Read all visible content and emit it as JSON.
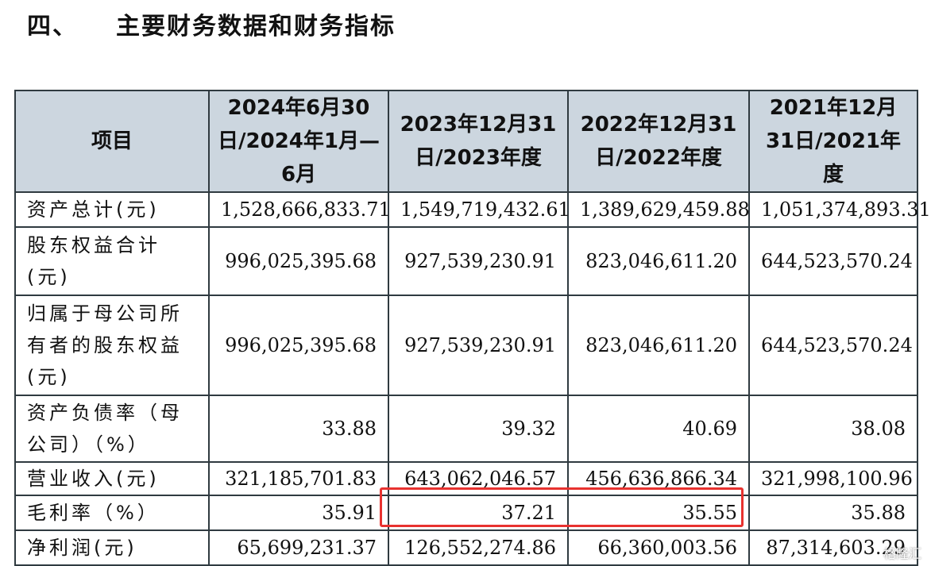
{
  "heading": {
    "number": "四、",
    "title": "主要财务数据和财务指标"
  },
  "table": {
    "headers": [
      "项目",
      "2024年6月30日/2024年1月—6月",
      "2023年12月31日/2023年度",
      "2022年12月31日/2022年度",
      "2021年12月31日/2021年度"
    ],
    "rows": [
      {
        "label": "资产总计(元)",
        "values": [
          "1,528,666,833.71",
          "1,549,719,432.61",
          "1,389,629,459.88",
          "1,051,374,893.31"
        ]
      },
      {
        "label": "股东权益合计(元)",
        "values": [
          "996,025,395.68",
          "927,539,230.91",
          "823,046,611.20",
          "644,523,570.24"
        ]
      },
      {
        "label": "归属于母公司所有者的股东权益(元)",
        "values": [
          "996,025,395.68",
          "927,539,230.91",
          "823,046,611.20",
          "644,523,570.24"
        ]
      },
      {
        "label": "资产负债率（母公司）（%）",
        "values": [
          "33.88",
          "39.32",
          "40.69",
          "38.08"
        ]
      },
      {
        "label": "营业收入(元)",
        "values": [
          "321,185,701.83",
          "643,062,046.57",
          "456,636,866.34",
          "321,998,100.96"
        ]
      },
      {
        "label": "毛利率（%）",
        "values": [
          "35.91",
          "37.21",
          "35.55",
          "35.88"
        ]
      },
      {
        "label": "净利润(元)",
        "values": [
          "65,699,231.37",
          "126,552,274.86",
          "66,360,003.56",
          "87,314,603.29"
        ]
      }
    ]
  },
  "watermark": "格隆汇"
}
